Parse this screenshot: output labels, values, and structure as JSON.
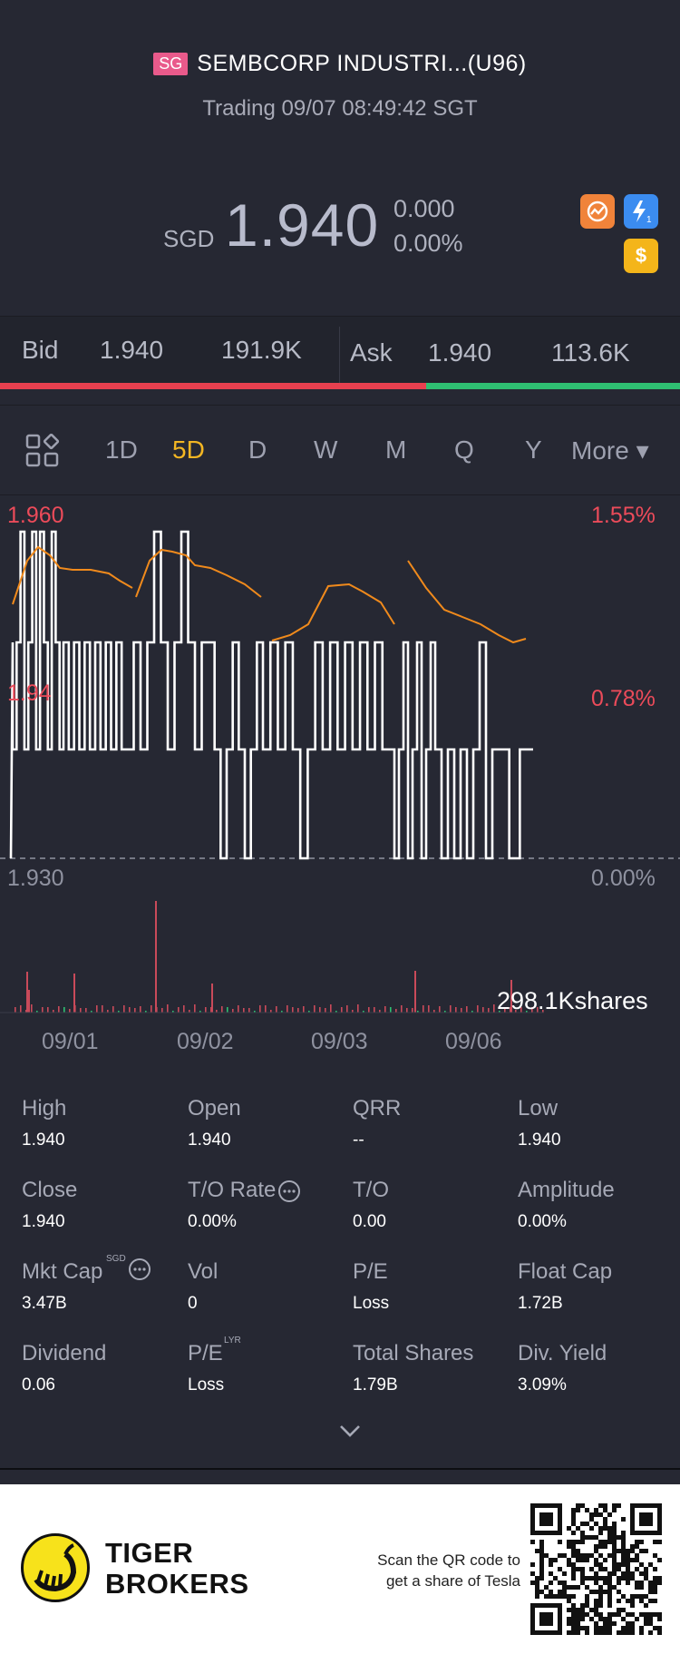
{
  "header": {
    "market_badge": "SG",
    "title": "SEMBCORP INDUSTRI...(U96)",
    "status": "Trading 09/07 08:49:42 SGT",
    "currency": "SGD",
    "price": "1.940",
    "change": "0.000",
    "change_pct": "0.00%",
    "icons": [
      "chart-badge-icon",
      "lightning-icon",
      "dollar-icon"
    ],
    "lightning_count": "1"
  },
  "bidask": {
    "bid_label": "Bid",
    "bid_price": "1.940",
    "bid_size": "191.9K",
    "ask_label": "Ask",
    "ask_price": "1.940",
    "ask_size": "113.6K",
    "bid_share": 0.627
  },
  "tabs": {
    "items": [
      "1D",
      "5D",
      "D",
      "W",
      "M",
      "Q",
      "Y",
      "More ▾"
    ],
    "active": "5D"
  },
  "chart_data": {
    "type": "line",
    "y_axis_left": [
      "1.960",
      "1.94",
      "1.930"
    ],
    "y_axis_right": [
      "1.55%",
      "0.78%",
      "0.00%"
    ],
    "ylim": [
      1.93,
      1.96
    ],
    "x_labels": [
      "09/01",
      "09/02",
      "09/03",
      "09/06"
    ],
    "volume_label": "298.1Kshares",
    "series": [
      {
        "name": "",
        "color": "#ffffff"
      },
      {
        "name": "",
        "color": "#f08a1c"
      }
    ]
  },
  "stats": [
    {
      "label": "High",
      "value": "1.940"
    },
    {
      "label": "Open",
      "value": "1.940"
    },
    {
      "label": "QRR",
      "value": "--"
    },
    {
      "label": "Low",
      "value": "1.940"
    },
    {
      "label": "Close",
      "value": "1.940"
    },
    {
      "label": "T/O Rate",
      "value": "0.00%"
    },
    {
      "label": "T/O",
      "value": "0.00"
    },
    {
      "label": "Amplitude",
      "value": "0.00%"
    },
    {
      "label": "Mkt Cap",
      "value": "3.47B",
      "sup": "SGD"
    },
    {
      "label": "Vol",
      "value": "0"
    },
    {
      "label": "P/E",
      "value": "Loss"
    },
    {
      "label": "Float Cap",
      "value": "1.72B"
    },
    {
      "label": "Dividend",
      "value": "0.06"
    },
    {
      "label": "P/E",
      "value": "Loss",
      "sup": "LYR"
    },
    {
      "label": "Total Shares",
      "value": "1.79B"
    },
    {
      "label": "Div. Yield",
      "value": "3.09%"
    }
  ],
  "footer": {
    "brand_line1": "TIGER",
    "brand_line2": "BROKERS",
    "scan_line1": "Scan the QR code to",
    "scan_line2": "get a share of Tesla"
  }
}
